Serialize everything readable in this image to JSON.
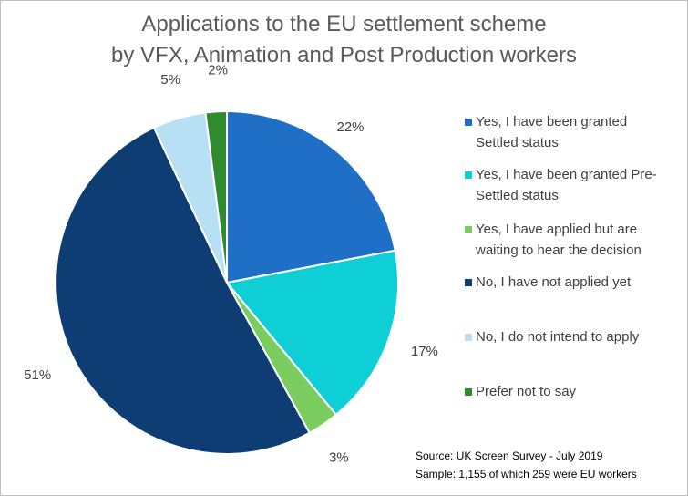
{
  "chart_data": {
    "type": "pie",
    "title_lines": [
      "Applications to the EU settlement scheme",
      "by VFX, Animation and Post Production workers"
    ],
    "slices": [
      {
        "name": "Yes, I have been granted Settled status",
        "value": 22,
        "label": "22%",
        "color": "#1f6fc6",
        "legend_lines": [
          "Yes, I have been granted",
          "Settled status"
        ]
      },
      {
        "name": "Yes, I have been granted Pre-Settled status",
        "value": 17,
        "label": "17%",
        "color": "#0fcfd6",
        "legend_lines": [
          "Yes, I have been granted Pre-",
          "Settled status"
        ]
      },
      {
        "name": "Yes, I have applied but are waiting to hear the decision",
        "value": 3,
        "label": "3%",
        "color": "#7ccd5f",
        "legend_lines": [
          "Yes, I have applied but are",
          "waiting to hear the decision"
        ]
      },
      {
        "name": "No, I have not applied yet",
        "value": 51,
        "label": "51%",
        "color": "#0e3d73",
        "legend_lines": [
          "No, I have not applied yet"
        ]
      },
      {
        "name": "No, I do not intend to apply",
        "value": 5,
        "label": "5%",
        "color": "#b7e0f4",
        "legend_lines": [
          "No, I do not intend to apply"
        ]
      },
      {
        "name": "Prefer not to say",
        "value": 2,
        "label": "2%",
        "color": "#2e8b2e",
        "legend_lines": [
          "Prefer not to say"
        ]
      }
    ],
    "legend_position": "right",
    "source_lines": [
      "Source: UK Screen Survey - July 2019",
      "Sample: 1,155 of which 259 were EU workers"
    ]
  }
}
